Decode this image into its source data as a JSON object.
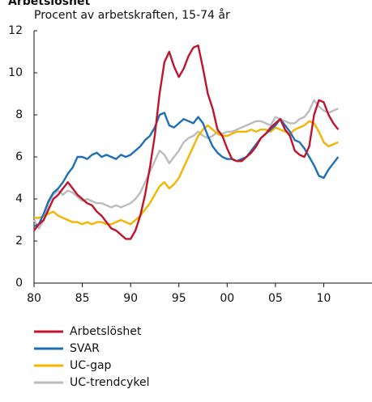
{
  "chart_data": {
    "type": "line",
    "title": "Arbetslöshet",
    "subtitle": "Procent av arbetskraften, 15-74 år",
    "x": [
      1980,
      1980.5,
      1981,
      1981.5,
      1982,
      1982.5,
      1983,
      1983.5,
      1984,
      1984.5,
      1985,
      1985.5,
      1986,
      1986.5,
      1987,
      1987.5,
      1988,
      1988.5,
      1989,
      1989.5,
      1990,
      1990.5,
      1991,
      1991.5,
      1992,
      1992.5,
      1993,
      1993.5,
      1994,
      1994.5,
      1995,
      1995.5,
      1996,
      1996.5,
      1997,
      1997.5,
      1998,
      1998.5,
      1999,
      1999.5,
      2000,
      2000.5,
      2001,
      2001.5,
      2002,
      2002.5,
      2003,
      2003.5,
      2004,
      2004.5,
      2005,
      2005.5,
      2006,
      2006.5,
      2007,
      2007.5,
      2008,
      2008.5,
      2009,
      2009.5,
      2010,
      2010.5,
      2011,
      2011.5
    ],
    "series": [
      {
        "name": "Arbetslöshet",
        "color": "#c0142b",
        "values": [
          2.5,
          2.8,
          3.0,
          3.5,
          4.0,
          4.2,
          4.5,
          4.8,
          4.5,
          4.2,
          4.0,
          3.8,
          3.7,
          3.4,
          3.2,
          2.9,
          2.6,
          2.5,
          2.3,
          2.1,
          2.1,
          2.5,
          3.2,
          4.2,
          5.5,
          7.0,
          9.0,
          10.5,
          11.0,
          10.3,
          9.8,
          10.2,
          10.8,
          11.2,
          11.3,
          10.2,
          9.0,
          8.3,
          7.3,
          7.0,
          6.4,
          5.9,
          5.8,
          5.8,
          6.0,
          6.2,
          6.5,
          6.9,
          7.1,
          7.4,
          7.6,
          7.8,
          7.3,
          7.0,
          6.3,
          6.1,
          6.0,
          6.5,
          8.0,
          8.7,
          8.6,
          8.0,
          7.6,
          7.3
        ]
      },
      {
        "name": "SVAR",
        "color": "#1d70b7",
        "values": [
          2.7,
          2.8,
          3.3,
          3.9,
          4.3,
          4.5,
          4.8,
          5.2,
          5.5,
          6.0,
          6.0,
          5.9,
          6.1,
          6.2,
          6.0,
          6.1,
          6.0,
          5.9,
          6.1,
          6.0,
          6.1,
          6.3,
          6.5,
          6.8,
          7.0,
          7.4,
          8.0,
          8.1,
          7.5,
          7.4,
          7.6,
          7.8,
          7.7,
          7.6,
          7.9,
          7.6,
          7.0,
          6.5,
          6.2,
          6.0,
          5.9,
          5.9,
          5.8,
          5.9,
          6.0,
          6.3,
          6.6,
          6.9,
          7.1,
          7.3,
          7.5,
          7.8,
          7.5,
          7.2,
          6.8,
          6.7,
          6.4,
          6.0,
          5.6,
          5.1,
          5.0,
          5.4,
          5.7,
          6.0
        ]
      },
      {
        "name": "UC-gap",
        "color": "#f5b400",
        "values": [
          3.1,
          3.1,
          3.2,
          3.3,
          3.4,
          3.2,
          3.1,
          3.0,
          2.9,
          2.9,
          2.8,
          2.9,
          2.8,
          2.9,
          2.9,
          2.8,
          2.8,
          2.9,
          3.0,
          2.9,
          2.8,
          3.0,
          3.2,
          3.5,
          3.8,
          4.2,
          4.6,
          4.8,
          4.5,
          4.7,
          5.0,
          5.5,
          6.0,
          6.5,
          7.0,
          7.3,
          7.5,
          7.3,
          7.1,
          7.0,
          7.0,
          7.1,
          7.2,
          7.2,
          7.2,
          7.3,
          7.2,
          7.3,
          7.3,
          7.2,
          7.4,
          7.3,
          7.2,
          7.1,
          7.3,
          7.4,
          7.5,
          7.7,
          7.6,
          7.2,
          6.7,
          6.5,
          6.6,
          6.7
        ]
      },
      {
        "name": "UC-trendcykel",
        "color": "#bcbcbc",
        "values": [
          3.0,
          2.6,
          3.0,
          3.8,
          4.2,
          4.4,
          4.2,
          4.4,
          4.3,
          4.1,
          3.9,
          4.0,
          3.9,
          3.8,
          3.8,
          3.7,
          3.6,
          3.7,
          3.6,
          3.7,
          3.8,
          4.0,
          4.3,
          4.8,
          5.3,
          5.8,
          6.3,
          6.1,
          5.7,
          6.0,
          6.3,
          6.7,
          6.9,
          7.0,
          7.2,
          7.0,
          6.9,
          7.0,
          7.2,
          7.1,
          7.2,
          7.2,
          7.3,
          7.4,
          7.5,
          7.6,
          7.7,
          7.7,
          7.6,
          7.5,
          7.9,
          7.8,
          7.7,
          7.6,
          7.6,
          7.8,
          7.9,
          8.2,
          8.7,
          8.4,
          8.2,
          8.1,
          8.2,
          8.3
        ]
      }
    ],
    "xlim": [
      1980,
      2015
    ],
    "xticks": [
      {
        "value": 1980,
        "label": "80"
      },
      {
        "value": 1985,
        "label": "85"
      },
      {
        "value": 1990,
        "label": "90"
      },
      {
        "value": 1995,
        "label": "95"
      },
      {
        "value": 2000,
        "label": "00"
      },
      {
        "value": 2005,
        "label": "05"
      },
      {
        "value": 2010,
        "label": "10"
      }
    ],
    "ylim": [
      0,
      12
    ],
    "yticks": [
      0,
      2,
      4,
      6,
      8,
      10,
      12
    ],
    "grid": false
  }
}
